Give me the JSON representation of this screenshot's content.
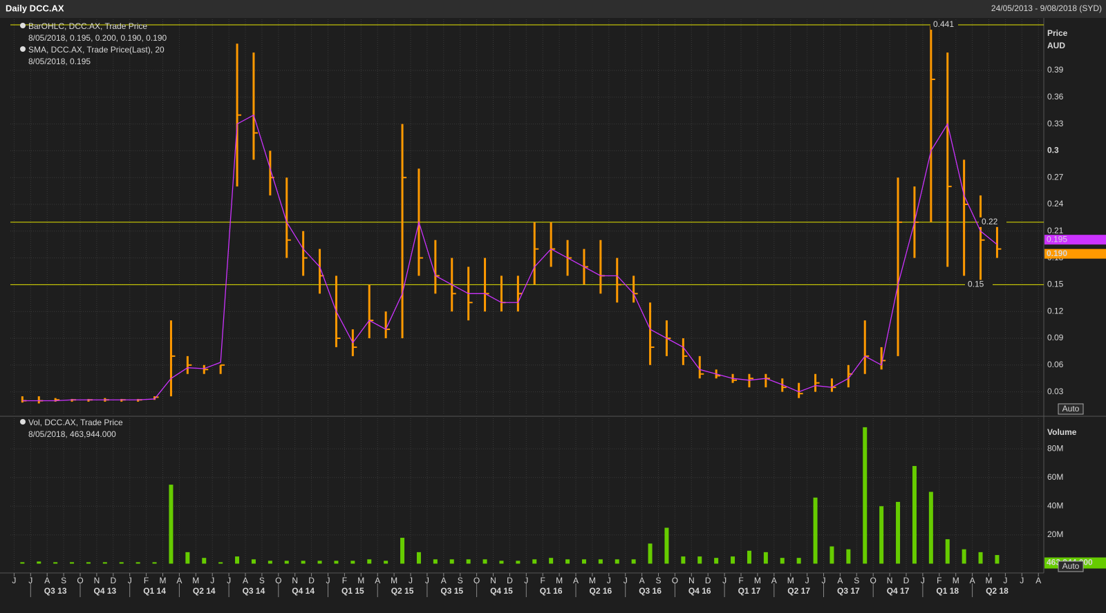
{
  "chart_data": {
    "type": "ohlc",
    "title": "Daily DCC.AX",
    "date_range": "24/05/2013 - 9/08/2018 (SYD)",
    "categories": [
      "J",
      "J",
      "A",
      "S",
      "O",
      "N",
      "D",
      "J",
      "F",
      "M",
      "A",
      "M",
      "J",
      "J",
      "A",
      "S",
      "O",
      "N",
      "D",
      "J",
      "F",
      "M",
      "A",
      "M",
      "J",
      "J",
      "A",
      "S",
      "O",
      "N",
      "D",
      "J",
      "F",
      "M",
      "A",
      "M",
      "J",
      "J",
      "A",
      "S",
      "O",
      "N",
      "D",
      "J",
      "F",
      "M",
      "A",
      "M",
      "J",
      "J",
      "A",
      "S",
      "O",
      "N",
      "D",
      "J",
      "F",
      "M",
      "A",
      "M",
      "J",
      "J",
      "A"
    ],
    "quarters": [
      "Q3 13",
      "Q4 13",
      "Q1 14",
      "Q2 14",
      "Q3 14",
      "Q4 14",
      "Q1 15",
      "Q2 15",
      "Q3 15",
      "Q4 15",
      "Q1 16",
      "Q2 16",
      "Q3 16",
      "Q4 16",
      "Q1 17",
      "Q2 17",
      "Q3 17",
      "Q4 17",
      "Q1 18",
      "Q2 18"
    ],
    "ylabel": [
      "Price",
      "AUD"
    ],
    "ylim": [
      0,
      0.45
    ],
    "yticks": [
      0.03,
      0.06,
      0.09,
      0.12,
      0.15,
      0.18,
      0.21,
      0.24,
      0.27,
      0.3,
      0.33,
      0.36,
      0.39
    ],
    "grid": true,
    "reference_lines": [
      0.441,
      0.22,
      0.15
    ],
    "reference_color": "#e6e600",
    "series": [
      {
        "name": "BarOHLC, DCC.AX, Trade Price",
        "detail": "8/05/2018, 0.195, 0.200, 0.190, 0.190",
        "color": "#ff9900",
        "high": [
          0.025,
          0.025,
          0.023,
          0.022,
          0.022,
          0.023,
          0.022,
          0.022,
          0.025,
          0.11,
          0.07,
          0.06,
          0.06,
          0.42,
          0.41,
          0.3,
          0.27,
          0.21,
          0.19,
          0.16,
          0.1,
          0.15,
          0.12,
          0.33,
          0.28,
          0.2,
          0.18,
          0.17,
          0.18,
          0.16,
          0.16,
          0.22,
          0.22,
          0.2,
          0.19,
          0.2,
          0.18,
          0.16,
          0.13,
          0.11,
          0.09,
          0.07,
          0.055,
          0.05,
          0.05,
          0.05,
          0.045,
          0.04,
          0.05,
          0.045,
          0.06,
          0.11,
          0.08,
          0.27,
          0.26,
          0.44,
          0.41,
          0.29,
          0.25,
          0.22,
          null,
          null,
          null
        ],
        "low": [
          0.018,
          0.017,
          0.019,
          0.019,
          0.019,
          0.019,
          0.019,
          0.019,
          0.021,
          0.025,
          0.05,
          0.05,
          0.05,
          0.26,
          0.29,
          0.25,
          0.18,
          0.16,
          0.14,
          0.08,
          0.07,
          0.09,
          0.09,
          0.09,
          0.16,
          0.14,
          0.12,
          0.11,
          0.12,
          0.12,
          0.12,
          0.15,
          0.17,
          0.16,
          0.15,
          0.14,
          0.13,
          0.13,
          0.06,
          0.07,
          0.06,
          0.045,
          0.045,
          0.04,
          0.035,
          0.035,
          0.03,
          0.023,
          0.03,
          0.03,
          0.035,
          0.05,
          0.055,
          0.07,
          0.18,
          0.22,
          0.17,
          0.16,
          0.15,
          0.18,
          null,
          null,
          null
        ],
        "close": [
          0.02,
          0.02,
          0.021,
          0.021,
          0.021,
          0.021,
          0.021,
          0.021,
          0.024,
          0.07,
          0.06,
          0.055,
          0.06,
          0.34,
          0.32,
          0.27,
          0.2,
          0.18,
          0.16,
          0.09,
          0.08,
          0.11,
          0.1,
          0.27,
          0.18,
          0.16,
          0.14,
          0.13,
          0.14,
          0.13,
          0.14,
          0.19,
          0.19,
          0.18,
          0.17,
          0.16,
          0.15,
          0.14,
          0.08,
          0.09,
          0.07,
          0.05,
          0.048,
          0.043,
          0.045,
          0.045,
          0.035,
          0.028,
          0.04,
          0.035,
          0.05,
          0.07,
          0.065,
          0.22,
          0.22,
          0.38,
          0.26,
          0.24,
          0.2,
          0.19,
          null,
          null,
          null
        ]
      },
      {
        "name": "SMA, DCC.AX, Trade Price(Last),  20",
        "detail": "8/05/2018, 0.195",
        "color": "#cc33ff",
        "values": [
          0.02,
          0.02,
          0.02,
          0.021,
          0.021,
          0.021,
          0.021,
          0.021,
          0.022,
          0.045,
          0.057,
          0.056,
          0.063,
          0.33,
          0.34,
          0.28,
          0.22,
          0.19,
          0.17,
          0.12,
          0.085,
          0.11,
          0.1,
          0.14,
          0.22,
          0.16,
          0.15,
          0.14,
          0.14,
          0.13,
          0.13,
          0.17,
          0.19,
          0.18,
          0.17,
          0.16,
          0.16,
          0.14,
          0.1,
          0.09,
          0.08,
          0.055,
          0.05,
          0.045,
          0.043,
          0.045,
          0.038,
          0.03,
          0.037,
          0.035,
          0.045,
          0.07,
          0.06,
          0.15,
          0.22,
          0.3,
          0.33,
          0.25,
          0.21,
          0.195,
          null,
          null,
          null
        ]
      }
    ],
    "last_values": [
      {
        "value": 0.195,
        "label": "0.195",
        "color": "#cc33ff"
      },
      {
        "value": 0.19,
        "label": "0.190",
        "color": "#ff9900"
      }
    ],
    "volume": {
      "name": "Vol, DCC.AX, Trade Price",
      "detail": "8/05/2018, 463,944.000",
      "color": "#66cc00",
      "ylabel": "Volume",
      "ylim": [
        0,
        100000000
      ],
      "yticks": [
        {
          "value": 20000000,
          "label": "20M"
        },
        {
          "value": 40000000,
          "label": "40M"
        },
        {
          "value": 60000000,
          "label": "60M"
        },
        {
          "value": 80000000,
          "label": "80M"
        }
      ],
      "values": [
        1000000,
        1500000,
        1000000,
        1000000,
        1000000,
        1000000,
        1000000,
        1000000,
        1000000,
        55000000,
        8000000,
        4000000,
        1000000,
        5000000,
        3000000,
        2000000,
        2000000,
        2000000,
        2000000,
        2000000,
        2000000,
        3000000,
        2000000,
        18000000,
        8000000,
        3000000,
        3000000,
        3000000,
        3000000,
        2000000,
        2000000,
        3000000,
        4000000,
        3000000,
        3000000,
        3000000,
        3000000,
        3000000,
        14000000,
        25000000,
        5000000,
        5000000,
        4000000,
        5000000,
        9000000,
        8000000,
        4000000,
        4000000,
        46000000,
        12000000,
        10000000,
        95000000,
        40000000,
        43000000,
        68000000,
        50000000,
        17000000,
        10000000,
        8000000,
        6000000,
        null,
        null,
        null
      ],
      "last_value": {
        "value": 463944,
        "label": "463,944.000"
      }
    },
    "button": "Auto"
  }
}
